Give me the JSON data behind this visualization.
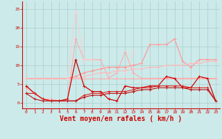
{
  "background_color": "#cceaea",
  "grid_color": "#aacccc",
  "xlabel": "Vent moyen/en rafales ( km/h )",
  "xlabel_color": "#cc0000",
  "xlabel_fontsize": 7,
  "tick_color": "#cc0000",
  "tick_fontsize": 4.5,
  "ylim": [
    -1.5,
    27
  ],
  "xlim": [
    -0.5,
    23.5
  ],
  "yticks": [
    0,
    5,
    10,
    15,
    20,
    25
  ],
  "x": [
    0,
    1,
    2,
    3,
    4,
    5,
    6,
    7,
    8,
    9,
    10,
    11,
    12,
    13,
    14,
    15,
    16,
    17,
    18,
    19,
    20,
    21,
    22,
    23
  ],
  "series": [
    {
      "color": "#ffaaaa",
      "linewidth": 0.8,
      "marker": "+",
      "markersize": 3,
      "y": [
        6.5,
        6.5,
        6.5,
        6.5,
        6.5,
        6.5,
        6.5,
        6.5,
        6.5,
        6.5,
        6.5,
        6.5,
        6.5,
        6.5,
        6.5,
        6.5,
        6.5,
        6.5,
        6.5,
        6.5,
        6.5,
        6.5,
        6.5,
        6.5
      ]
    },
    {
      "color": "#ffaaaa",
      "linewidth": 0.8,
      "marker": "+",
      "markersize": 3,
      "y": [
        4.0,
        2.5,
        1.0,
        1.0,
        0.5,
        1.0,
        17.0,
        11.5,
        11.5,
        11.5,
        6.5,
        8.0,
        13.5,
        8.0,
        6.5,
        6.5,
        6.5,
        6.5,
        6.5,
        6.5,
        6.5,
        6.5,
        6.5,
        6.5
      ]
    },
    {
      "color": "#ff9999",
      "linewidth": 0.9,
      "marker": "+",
      "markersize": 3,
      "y": [
        6.5,
        6.5,
        6.5,
        6.5,
        6.5,
        6.5,
        7.0,
        8.0,
        8.5,
        9.0,
        9.5,
        9.5,
        9.5,
        10.0,
        10.5,
        15.5,
        15.5,
        15.5,
        17.0,
        11.0,
        9.5,
        11.5,
        11.5,
        11.5
      ]
    },
    {
      "color": "#ffbbbb",
      "linewidth": 0.8,
      "marker": "+",
      "markersize": 3,
      "y": [
        6.5,
        6.5,
        6.5,
        6.5,
        6.5,
        6.5,
        6.5,
        7.0,
        7.5,
        8.0,
        8.0,
        8.5,
        8.5,
        9.0,
        9.0,
        9.5,
        9.5,
        10.0,
        10.0,
        10.0,
        10.5,
        10.5,
        11.0,
        11.0
      ]
    },
    {
      "color": "#ffcccc",
      "linewidth": 0.7,
      "marker": "+",
      "markersize": 2.5,
      "y": [
        null,
        null,
        null,
        null,
        null,
        6.5,
        24.5,
        11.5,
        11.5,
        null,
        null,
        null,
        8.0,
        13.5,
        null,
        null,
        null,
        null,
        null,
        null,
        null,
        null,
        null,
        null
      ]
    },
    {
      "color": "#cc0000",
      "linewidth": 0.9,
      "marker": "+",
      "markersize": 3,
      "y": [
        4.5,
        2.5,
        1.0,
        0.5,
        0.5,
        1.0,
        11.5,
        4.5,
        3.0,
        3.0,
        1.0,
        0.5,
        4.5,
        4.0,
        4.0,
        4.5,
        4.5,
        7.0,
        6.5,
        4.0,
        4.0,
        7.0,
        6.5,
        0.5
      ]
    },
    {
      "color": "#dd2222",
      "linewidth": 0.8,
      "marker": "+",
      "markersize": 3,
      "y": [
        2.5,
        2.5,
        1.0,
        0.5,
        0.5,
        0.5,
        0.5,
        2.0,
        2.5,
        2.5,
        3.0,
        3.0,
        3.0,
        3.5,
        4.0,
        4.0,
        4.5,
        4.5,
        4.5,
        4.5,
        4.0,
        4.0,
        4.0,
        0.5
      ]
    },
    {
      "color": "#bb1111",
      "linewidth": 0.8,
      "marker": "+",
      "markersize": 3,
      "y": [
        2.5,
        1.0,
        0.5,
        0.5,
        0.5,
        0.5,
        0.5,
        1.5,
        2.0,
        2.0,
        2.5,
        2.5,
        2.5,
        3.0,
        3.5,
        3.5,
        4.0,
        4.0,
        4.0,
        4.0,
        3.5,
        3.5,
        3.5,
        0.5
      ]
    }
  ]
}
